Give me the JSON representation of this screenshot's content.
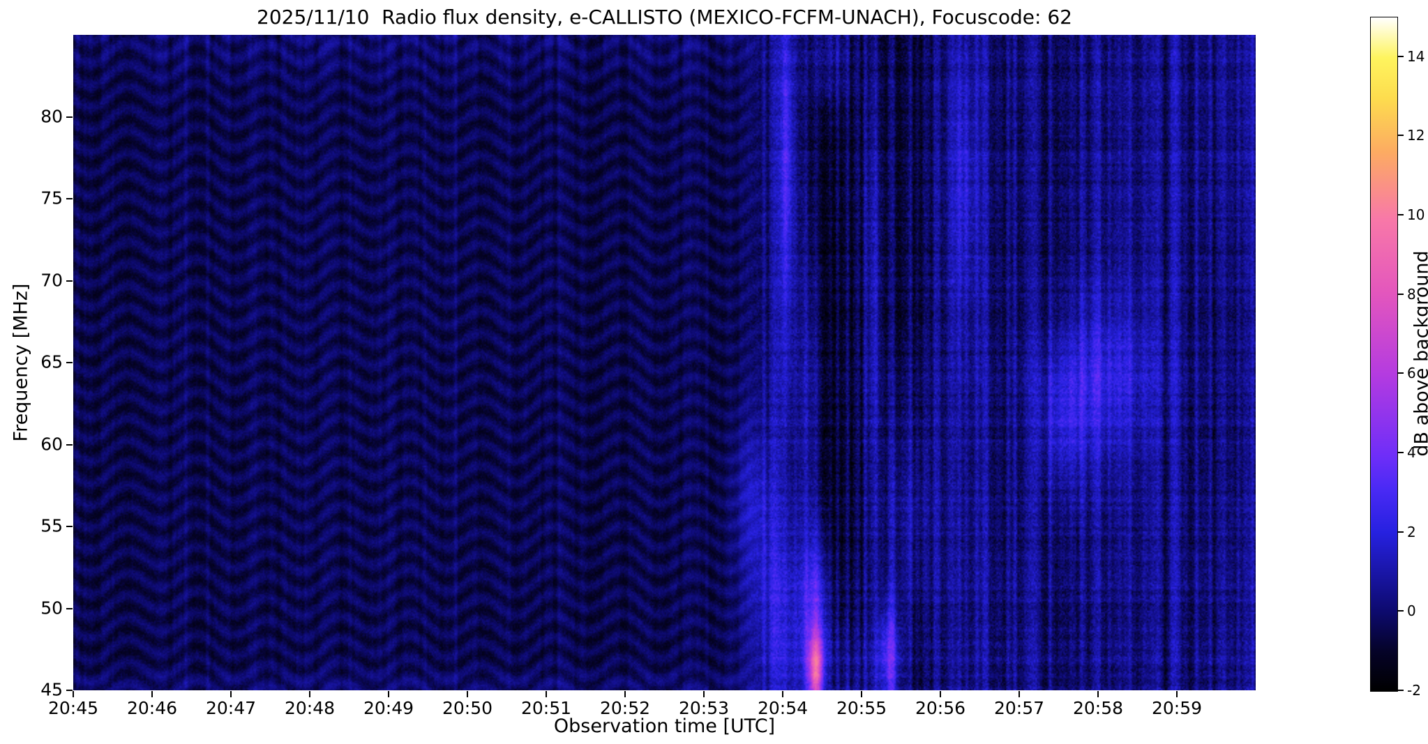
{
  "figure": {
    "title": "2025/11/10  Radio flux density, e-CALLISTO (MEXICO-FCFM-UNACH), Focuscode: 62",
    "xlabel": "Observation time [UTC]",
    "ylabel": "Frequency [MHz]"
  },
  "chart_data": {
    "type": "heatmap",
    "title": "2025/11/10  Radio flux density, e-CALLISTO (MEXICO-FCFM-UNACH), Focuscode: 62",
    "subtitle": "",
    "xlabel": "Observation time [UTC]",
    "ylabel": "Frequency [MHz]",
    "x_ticks": [
      "20:45",
      "20:46",
      "20:47",
      "20:48",
      "20:49",
      "20:50",
      "20:51",
      "20:52",
      "20:53",
      "20:54",
      "20:55",
      "20:56",
      "20:57",
      "20:58",
      "20:59"
    ],
    "x_start_utc": "20:45",
    "x_end_utc": "21:00",
    "x_range_minutes": [
      0,
      15
    ],
    "y_ticks_mhz": [
      45,
      50,
      55,
      60,
      65,
      70,
      75,
      80
    ],
    "y_range_mhz": [
      45,
      85
    ],
    "grid": false,
    "legend_position": "none",
    "background_level_db": -0.45,
    "colorbar": {
      "label": "dB above background",
      "ticks": [
        -2,
        0,
        2,
        4,
        6,
        8,
        10,
        12,
        14
      ],
      "range_db": [
        -2,
        15
      ],
      "colormap": "gnuplot2-like (black-blue-violet-magenta-pink-yellow-white)",
      "stops": [
        {
          "t": 0.0,
          "c": "#000000"
        },
        {
          "t": 0.059,
          "c": "#050328"
        },
        {
          "t": 0.118,
          "c": "#0d0a6e"
        },
        {
          "t": 0.235,
          "c": "#2621e0"
        },
        {
          "t": 0.3,
          "c": "#4a2af5"
        },
        {
          "t": 0.35,
          "c": "#6f2ef8"
        },
        {
          "t": 0.47,
          "c": "#b43be0"
        },
        {
          "t": 0.59,
          "c": "#e356bd"
        },
        {
          "t": 0.7,
          "c": "#f878a8"
        },
        {
          "t": 0.8,
          "c": "#fcab62"
        },
        {
          "t": 0.88,
          "c": "#fddc4e"
        },
        {
          "t": 0.94,
          "c": "#fef45e"
        },
        {
          "t": 1.0,
          "c": "#ffffff"
        }
      ]
    },
    "interference": {
      "description": "Wavy horizontal interference bands (zig-zag fringes) across all frequencies from 20:45 until ~20:53.4, then broadband noisy enhancement until end",
      "band_spacing_mhz": 1.35,
      "band_amplitude_db": 0.5,
      "time_wobble_period_min": 0.9,
      "visible_until_minute": 8.35,
      "enhanced_region_start_minute": 8.4,
      "enhanced_region_extra_db": 0.55
    },
    "features": [
      {
        "desc": "bright burst core near 20:54.4 at 45-48 MHz (pink/magenta)",
        "m": 9.42,
        "f": 46.2,
        "sm": 0.07,
        "sf": 1.6,
        "amp": 7.5
      },
      {
        "desc": "bright blue halo around burst core",
        "m": 9.42,
        "f": 50.0,
        "sm": 0.12,
        "sf": 3.2,
        "amp": 3.2
      },
      {
        "desc": "tall bright column ~20:54.3",
        "m": 9.35,
        "f": 62.0,
        "sm": 0.1,
        "sf": 9.0,
        "amp": 1.6
      },
      {
        "desc": "narrow bright streak ~20:54 upper band",
        "m": 9.05,
        "f": 77.0,
        "sm": 0.06,
        "sf": 8.0,
        "amp": 2.4
      },
      {
        "desc": "bright top patch ~20:54.6",
        "m": 9.6,
        "f": 84.0,
        "sm": 0.2,
        "sf": 2.5,
        "amp": 1.8
      },
      {
        "desc": "second bright low-frequency spot ~20:55.3",
        "m": 10.35,
        "f": 47.0,
        "sm": 0.1,
        "sf": 2.4,
        "amp": 3.4
      },
      {
        "desc": "diffuse brightening ~20:55.5 at 50-60 MHz",
        "m": 10.55,
        "f": 56.0,
        "sm": 0.28,
        "sf": 5.0,
        "amp": 1.3
      },
      {
        "desc": "bright column ~20:55.1 upper band",
        "m": 10.15,
        "f": 70.0,
        "sm": 0.08,
        "sf": 10.0,
        "amp": 1.5
      },
      {
        "desc": "bright blue blob ~20:58 at 60-68 MHz",
        "m": 13.0,
        "f": 64.0,
        "sm": 0.5,
        "sf": 3.6,
        "amp": 1.9
      },
      {
        "desc": "blob ~20:57.5 at ~61 MHz",
        "m": 12.55,
        "f": 61.0,
        "sm": 0.22,
        "sf": 3.0,
        "amp": 1.4
      },
      {
        "desc": "bright column ~20:56.3 upper band",
        "m": 11.3,
        "f": 76.0,
        "sm": 0.12,
        "sf": 6.0,
        "amp": 1.4
      },
      {
        "desc": "bright streak ~20:53.6 at 54-60 MHz",
        "m": 8.62,
        "f": 57.0,
        "sm": 0.18,
        "sf": 3.5,
        "amp": 1.5
      },
      {
        "desc": "general low-frequency brightening 20:54-20:56",
        "m": 9.8,
        "f": 46.0,
        "sm": 0.5,
        "sf": 3.0,
        "amp": 1.2
      },
      {
        "desc": "brightening around onset 20:53.9",
        "m": 8.9,
        "f": 50.0,
        "sm": 0.3,
        "sf": 4.0,
        "amp": 1.4
      },
      {
        "desc": "darker vertical band ~20:57.1",
        "m": 12.1,
        "f": 70.0,
        "sm": 0.35,
        "sf": 12.0,
        "amp": -0.55
      },
      {
        "desc": "darker region near right edge ~20:59.6",
        "m": 14.65,
        "f": 64.0,
        "sm": 0.4,
        "sf": 9.0,
        "amp": -0.45
      }
    ]
  }
}
